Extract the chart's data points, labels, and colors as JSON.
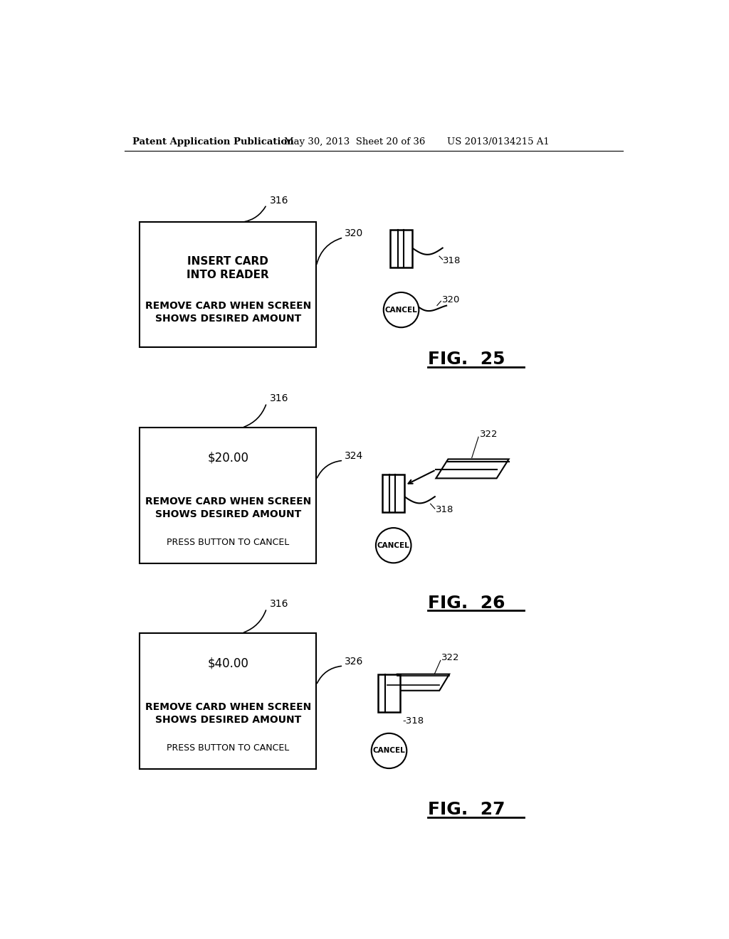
{
  "header_left": "Patent Application Publication",
  "header_mid": "May 30, 2013  Sheet 20 of 36",
  "header_right": "US 2013/0134215 A1",
  "bg_color": "#ffffff",
  "line_color": "#000000",
  "fig25": {
    "fig_label": "FIG.  25",
    "fig_num": "25",
    "screen_line1": "INSERT CARD",
    "screen_line2": "INTO READER",
    "screen_line3": "REMOVE CARD WHEN SCREEN",
    "screen_line4": "SHOWS DESIRED AMOUNT",
    "label_box": "316",
    "label_connector": "320",
    "label_reader": "318",
    "label_cancel": "320"
  },
  "fig26": {
    "fig_num": "26",
    "screen_line1": "$20.00",
    "screen_line3": "REMOVE CARD WHEN SCREEN",
    "screen_line4": "SHOWS DESIRED AMOUNT",
    "screen_line5": "PRESS BUTTON TO CANCEL",
    "label_box": "316",
    "label_connector": "324",
    "label_card": "322",
    "label_reader": "318"
  },
  "fig27": {
    "fig_num": "27",
    "screen_line1": "$40.00",
    "screen_line3": "REMOVE CARD WHEN SCREEN",
    "screen_line4": "SHOWS DESIRED AMOUNT",
    "screen_line5": "PRESS BUTTON TO CANCEL",
    "label_box": "316",
    "label_connector": "326",
    "label_card": "322",
    "label_reader": "318"
  }
}
